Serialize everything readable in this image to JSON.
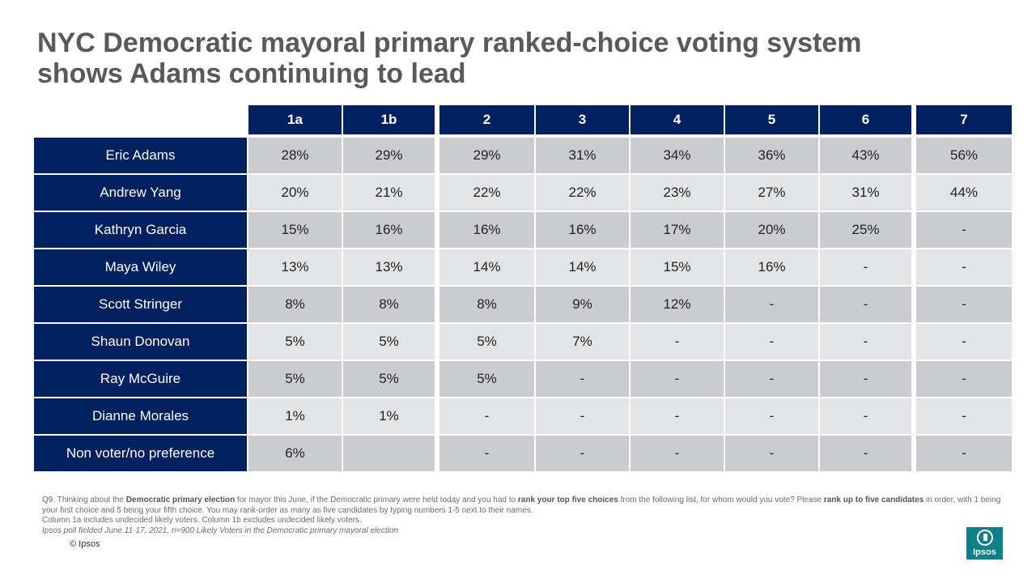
{
  "title_line1": "NYC Democratic mayoral primary ranked-choice voting system",
  "title_line2": "shows Adams continuing to lead",
  "columns": [
    "1a",
    "1b",
    "2",
    "3",
    "4",
    "5",
    "6",
    "7"
  ],
  "rows": [
    {
      "name": "Eric Adams",
      "values": [
        "28%",
        "29%",
        "29%",
        "31%",
        "34%",
        "36%",
        "43%",
        "56%"
      ]
    },
    {
      "name": "Andrew Yang",
      "values": [
        "20%",
        "21%",
        "22%",
        "22%",
        "23%",
        "27%",
        "31%",
        "44%"
      ]
    },
    {
      "name": "Kathryn Garcia",
      "values": [
        "15%",
        "16%",
        "16%",
        "16%",
        "17%",
        "20%",
        "25%",
        "-"
      ]
    },
    {
      "name": "Maya Wiley",
      "values": [
        "13%",
        "13%",
        "14%",
        "14%",
        "15%",
        "16%",
        "-",
        "-"
      ]
    },
    {
      "name": "Scott Stringer",
      "values": [
        "8%",
        "8%",
        "8%",
        "9%",
        "12%",
        "-",
        "-",
        "-"
      ]
    },
    {
      "name": "Shaun Donovan",
      "values": [
        "5%",
        "5%",
        "5%",
        "7%",
        "-",
        "-",
        "-",
        "-"
      ]
    },
    {
      "name": "Ray McGuire",
      "values": [
        "5%",
        "5%",
        "5%",
        "-",
        "-",
        "-",
        "-",
        "-"
      ]
    },
    {
      "name": "Dianne Morales",
      "values": [
        "1%",
        "1%",
        "-",
        "-",
        "-",
        "-",
        "-",
        "-"
      ]
    },
    {
      "name": "Non voter/no preference",
      "values": [
        "6%",
        "",
        "-",
        "-",
        "-",
        "-",
        "-",
        "-"
      ]
    }
  ],
  "footnote": {
    "q_prefix": "Q9. Thinking  about the ",
    "q_bold1": "Democratic primary election",
    "q_mid1": " for mayor this June, if the Democratic primary  were held today and you had to ",
    "q_bold2": "rank your top five choices",
    "q_mid2": " from the following list, for whom would you vote? Please ",
    "q_bold3": "rank up to five candidates",
    "q_suffix": " in order, with 1 being your first choice and 5 being your fifth choice. You may rank-order as many as  five candidates by typing numbers 1-5 next to their names.",
    "note_columns": "Column  1a includes undecided likely voters. Column 1b excludes undecided likely  voters.",
    "fielded": "Ipsos poll fielded June 11-17, 2021, n=900 Likely Voters in the Democratic primary mayoral election"
  },
  "copyright": "© Ipsos",
  "logo_text": "Ipsos",
  "colors": {
    "navy": "#002060",
    "teal": "#0f8088"
  }
}
